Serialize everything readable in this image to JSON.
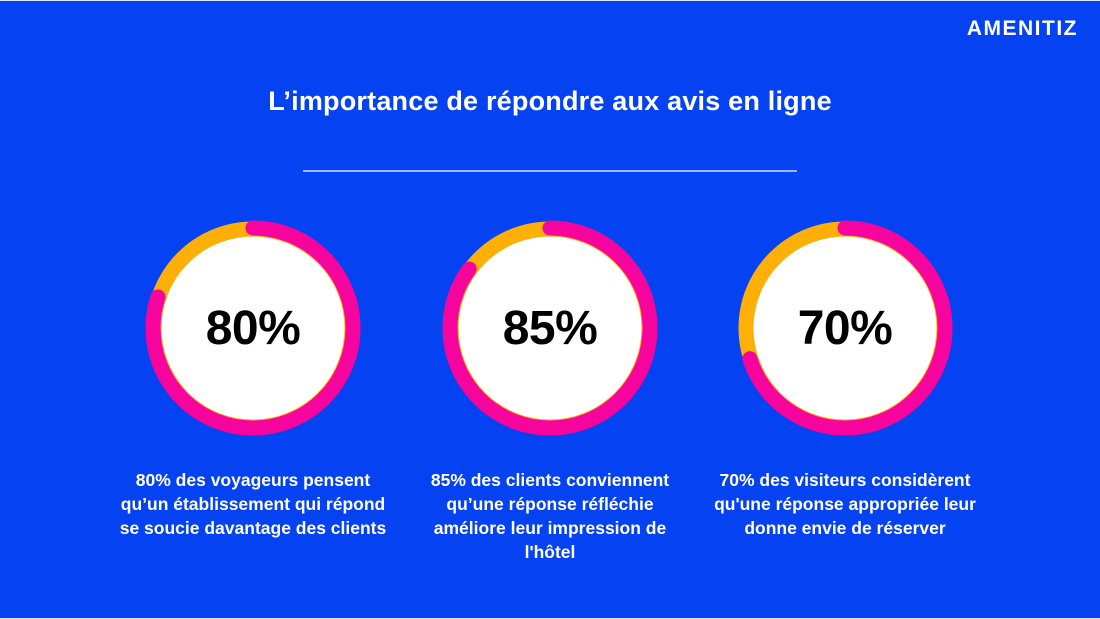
{
  "logo": {
    "text": "AMENITIZ"
  },
  "header": {
    "title": "L’importance de répondre aux avis en ligne"
  },
  "colors": {
    "background": "#0543F2",
    "ring_value": "#F7049E",
    "ring_remainder": "#FFAF05",
    "donut_inner": "#FFFFFF",
    "value_text": "#000000",
    "body_text": "#FFFFFF",
    "divider": "rgba(255,255,255,0.62)"
  },
  "chart_data": [
    {
      "type": "pie",
      "style": "donut",
      "center_label": "80%",
      "slices": [
        {
          "label": "pourcentage",
          "value": 80,
          "color": "#F7049E"
        },
        {
          "label": "reste",
          "value": 20,
          "color": "#FFAF05"
        }
      ],
      "start_angle_deg": -90,
      "direction": "clockwise",
      "caption": "80% des voyageurs pensent\nqu’un établissement qui répond\nse soucie davantage des clients"
    },
    {
      "type": "pie",
      "style": "donut",
      "center_label": "85%",
      "slices": [
        {
          "label": "pourcentage",
          "value": 85,
          "color": "#F7049E"
        },
        {
          "label": "reste",
          "value": 15,
          "color": "#FFAF05"
        }
      ],
      "start_angle_deg": -90,
      "direction": "clockwise",
      "caption": "85% des clients conviennent\nqu’une réponse réfléchie\naméliore leur impression de\nl'hôtel"
    },
    {
      "type": "pie",
      "style": "donut",
      "center_label": "70%",
      "slices": [
        {
          "label": "pourcentage",
          "value": 70,
          "color": "#F7049E"
        },
        {
          "label": "reste",
          "value": 30,
          "color": "#FFAF05"
        }
      ],
      "start_angle_deg": -90,
      "direction": "clockwise",
      "caption": "70% des visiteurs considèrent\nqu'une réponse appropriée leur\ndonne envie de réserver"
    }
  ]
}
